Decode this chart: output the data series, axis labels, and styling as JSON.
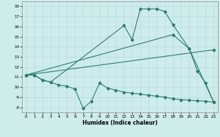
{
  "xlabel": "Humidex (Indice chaleur)",
  "xlim": [
    -0.5,
    23.5
  ],
  "ylim": [
    7.5,
    18.5
  ],
  "yticks": [
    8,
    9,
    10,
    11,
    12,
    13,
    14,
    15,
    16,
    17,
    18
  ],
  "xticks": [
    0,
    1,
    2,
    3,
    4,
    5,
    6,
    7,
    8,
    9,
    10,
    11,
    12,
    13,
    14,
    15,
    16,
    17,
    18,
    19,
    20,
    21,
    22,
    23
  ],
  "background_color": "#ceecea",
  "line_color": "#2e7d6e",
  "grid_color": "#b8dedd",
  "line1_x": [
    0,
    1,
    2,
    3,
    12,
    13,
    14,
    15,
    16,
    17,
    18,
    20,
    21,
    22,
    23
  ],
  "line1_y": [
    11.2,
    11.2,
    10.7,
    10.5,
    16.1,
    14.7,
    17.75,
    17.75,
    17.75,
    17.5,
    16.2,
    13.8,
    11.6,
    10.4,
    8.5
  ],
  "line2_x": [
    0,
    18,
    20,
    23
  ],
  "line2_y": [
    11.2,
    15.2,
    13.8,
    8.5
  ],
  "line3_x": [
    0,
    23
  ],
  "line3_y": [
    11.2,
    13.7
  ],
  "line4_x": [
    0,
    1,
    2,
    3,
    4,
    5,
    6,
    7,
    8,
    9,
    10,
    11,
    12,
    13,
    14,
    15,
    16,
    17,
    18,
    19,
    20,
    21,
    22,
    23
  ],
  "line4_y": [
    11.2,
    11.2,
    10.7,
    10.5,
    10.2,
    10.1,
    9.8,
    7.9,
    8.6,
    10.4,
    9.9,
    9.7,
    9.5,
    9.4,
    9.3,
    9.2,
    9.1,
    9.0,
    8.85,
    8.75,
    8.7,
    8.65,
    8.6,
    8.5
  ]
}
